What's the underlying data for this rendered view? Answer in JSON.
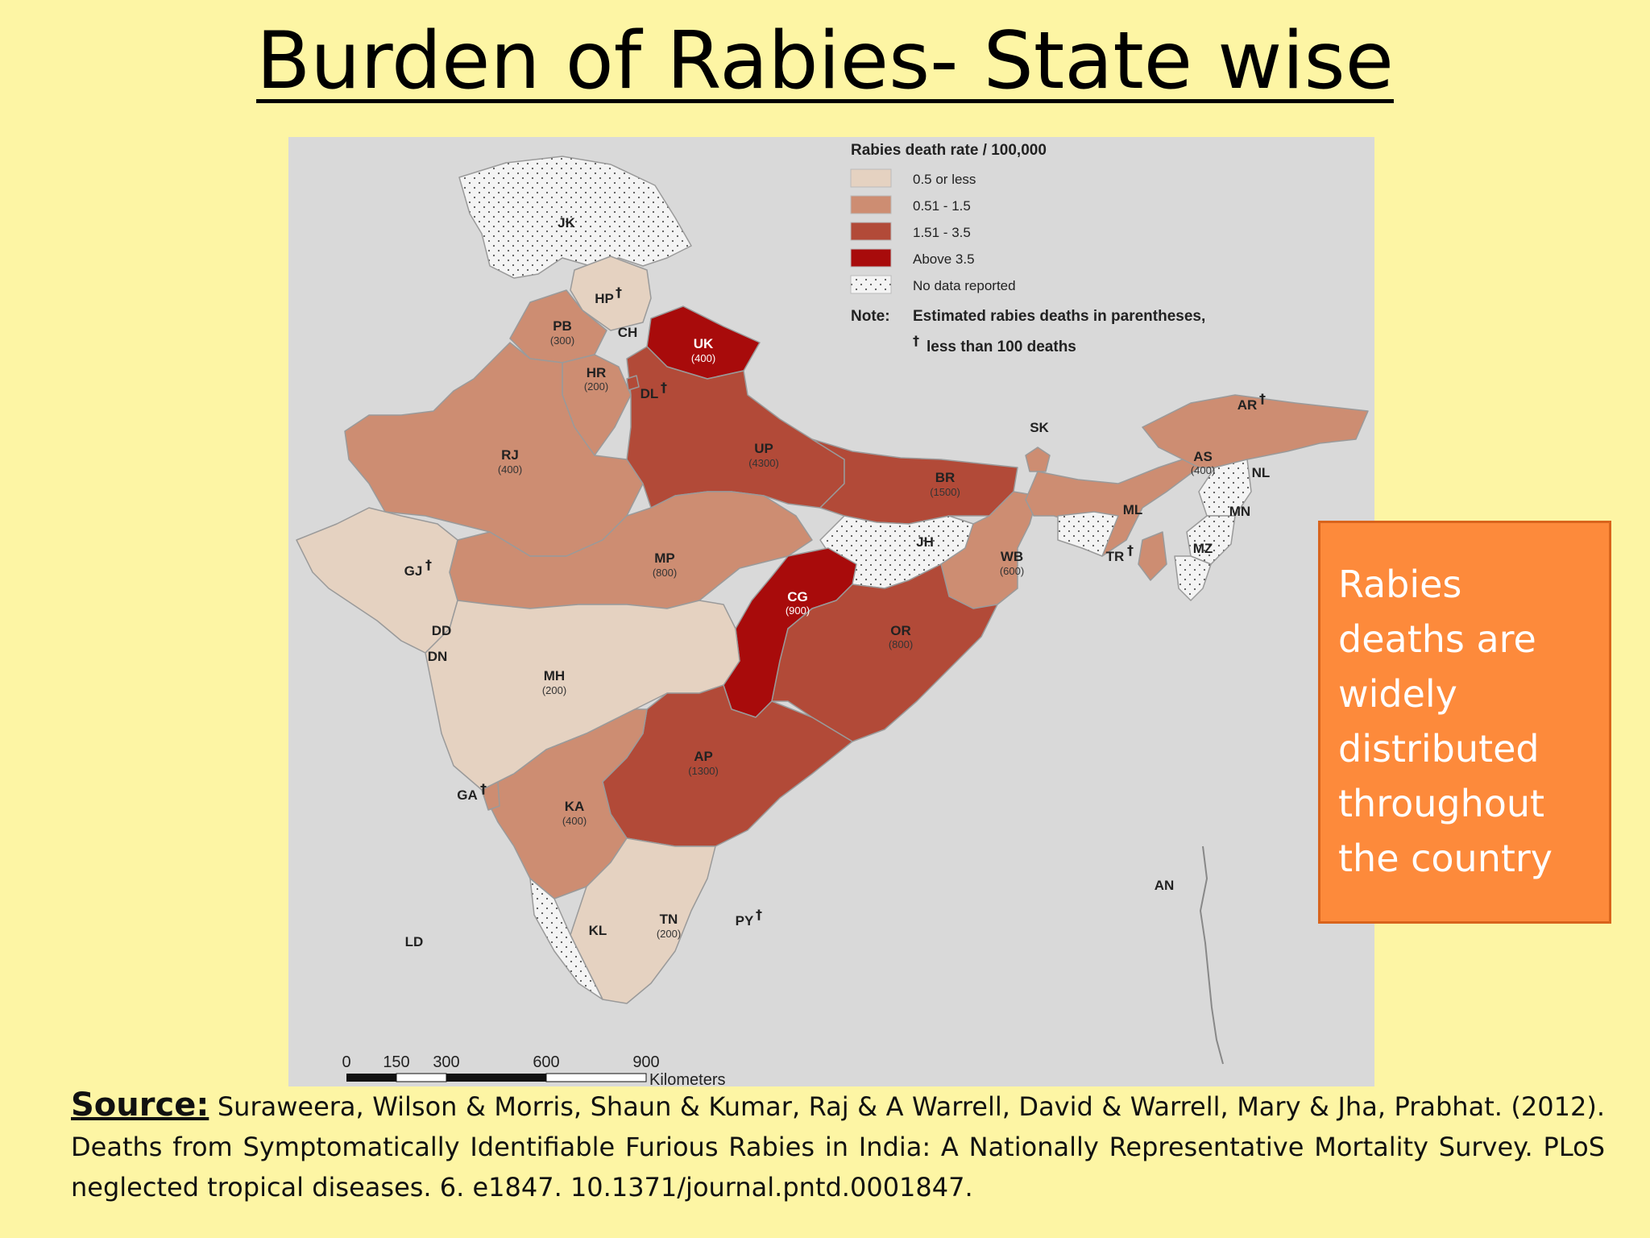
{
  "slide": {
    "title": "Burden of Rabies- State wise",
    "callout": "Rabies deaths are widely distributed throughout the country",
    "source_label": "Source:",
    "source_text": "Suraweera, Wilson & Morris, Shaun & Kumar, Raj & A Warrell, David & Warrell, Mary & Jha, Prabhat. (2012). Deaths from Symptomatically Identifiable Furious Rabies in India: A Nationally Representative Mortality Survey. PLoS neglected tropical diseases. 6. e1847. 10.1371/journal.pntd.0001847."
  },
  "map": {
    "legend": {
      "title": "Rabies death rate / 100,000",
      "categories": [
        {
          "label": "0.5 or less",
          "color": "#e5d2c1"
        },
        {
          "label": "0.51 - 1.5",
          "color": "#cd8d72"
        },
        {
          "label": "1.51 - 3.5",
          "color": "#b24a38"
        },
        {
          "label": "Above 3.5",
          "color": "#a80b0b"
        },
        {
          "label": "No data reported",
          "color": "#f4f4f4"
        }
      ],
      "note_label": "Note:",
      "note_line1": "Estimated rabies deaths in parentheses,",
      "note_line2": "less than 100 deaths",
      "dagger": "†"
    },
    "scale": {
      "ticks": [
        "0",
        "150",
        "300",
        "600",
        "900"
      ],
      "unit": "Kilometers"
    },
    "regions": [
      {
        "code": "JK",
        "deaths": "",
        "dagger": false
      },
      {
        "code": "HP",
        "deaths": "",
        "dagger": true
      },
      {
        "code": "PB",
        "deaths": "(300)",
        "dagger": false
      },
      {
        "code": "CH",
        "deaths": "",
        "dagger": false
      },
      {
        "code": "UK",
        "deaths": "(400)",
        "dagger": false
      },
      {
        "code": "HR",
        "deaths": "(200)",
        "dagger": false
      },
      {
        "code": "DL",
        "deaths": "",
        "dagger": true
      },
      {
        "code": "RJ",
        "deaths": "(400)",
        "dagger": false
      },
      {
        "code": "UP",
        "deaths": "(4300)",
        "dagger": false
      },
      {
        "code": "BR",
        "deaths": "(1500)",
        "dagger": false
      },
      {
        "code": "SK",
        "deaths": "",
        "dagger": false
      },
      {
        "code": "AR",
        "deaths": "",
        "dagger": true
      },
      {
        "code": "AS",
        "deaths": "(400)",
        "dagger": false
      },
      {
        "code": "NL",
        "deaths": "",
        "dagger": false
      },
      {
        "code": "ML",
        "deaths": "",
        "dagger": false
      },
      {
        "code": "MN",
        "deaths": "",
        "dagger": false
      },
      {
        "code": "TR",
        "deaths": "",
        "dagger": true
      },
      {
        "code": "MZ",
        "deaths": "",
        "dagger": false
      },
      {
        "code": "JH",
        "deaths": "",
        "dagger": false
      },
      {
        "code": "WB",
        "deaths": "(600)",
        "dagger": false
      },
      {
        "code": "GJ",
        "deaths": "",
        "dagger": true
      },
      {
        "code": "MP",
        "deaths": "(800)",
        "dagger": false
      },
      {
        "code": "CG",
        "deaths": "(900)",
        "dagger": false
      },
      {
        "code": "OR",
        "deaths": "(800)",
        "dagger": false
      },
      {
        "code": "DD",
        "deaths": "",
        "dagger": false
      },
      {
        "code": "DN",
        "deaths": "",
        "dagger": false
      },
      {
        "code": "MH",
        "deaths": "(200)",
        "dagger": false
      },
      {
        "code": "AP",
        "deaths": "(1300)",
        "dagger": false
      },
      {
        "code": "GA",
        "deaths": "",
        "dagger": true
      },
      {
        "code": "KA",
        "deaths": "(400)",
        "dagger": false
      },
      {
        "code": "AN",
        "deaths": "",
        "dagger": false
      },
      {
        "code": "TN",
        "deaths": "(200)",
        "dagger": false
      },
      {
        "code": "PY",
        "deaths": "",
        "dagger": true
      },
      {
        "code": "KL",
        "deaths": "",
        "dagger": false
      },
      {
        "code": "LD",
        "deaths": "",
        "dagger": false
      }
    ]
  }
}
